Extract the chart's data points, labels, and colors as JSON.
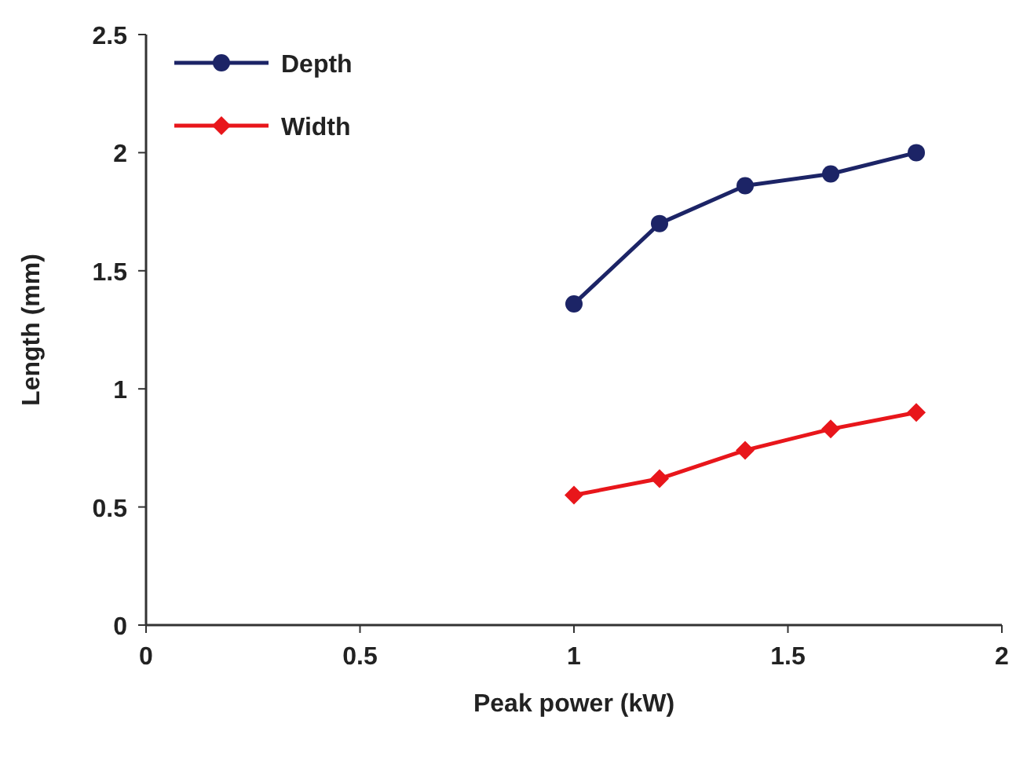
{
  "chart_data": {
    "type": "line",
    "xlabel": "Peak power (kW)",
    "ylabel": "Length (mm)",
    "x": [
      1,
      1.2,
      1.4,
      1.6,
      1.8
    ],
    "series": [
      {
        "name": "Depth",
        "color": "#1c2466",
        "marker": "circle",
        "values": [
          1.36,
          1.7,
          1.86,
          1.91,
          2.0
        ]
      },
      {
        "name": "Width",
        "color": "#e8161b",
        "marker": "diamond",
        "values": [
          0.55,
          0.62,
          0.74,
          0.83,
          0.9
        ]
      }
    ],
    "xlim": [
      0,
      2
    ],
    "xticks": [
      0,
      0.5,
      1,
      1.5,
      2
    ],
    "ylim": [
      0,
      2.5
    ],
    "yticks": [
      0,
      0.5,
      1,
      1.5,
      2,
      2.5
    ],
    "grid": false,
    "legend": "top left",
    "line_style": "solid"
  }
}
